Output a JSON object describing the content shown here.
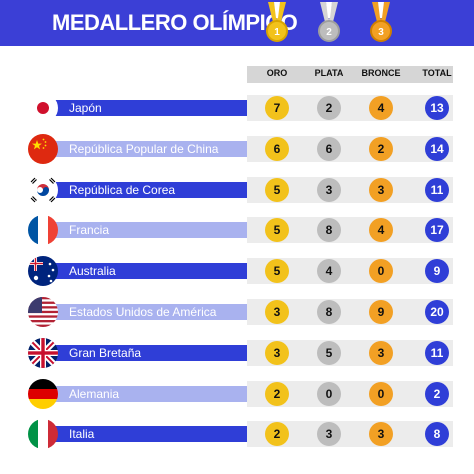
{
  "header": {
    "title": "MEDALLERO OLÍMPICO",
    "medal_colors": {
      "gold": "#f2c21b",
      "silver": "#bdbdbd",
      "bronze": "#f2a024"
    },
    "medal_numbers": [
      "1",
      "2",
      "3"
    ]
  },
  "chart_data": {
    "type": "table",
    "columns": [
      "ORO",
      "PLATA",
      "BRONCE",
      "TOTAL"
    ],
    "rows": [
      {
        "country": "Japón",
        "flag": "japan-flag",
        "oro": "7",
        "plata": "2",
        "bronce": "4",
        "total": "13"
      },
      {
        "country": "República Popular de China",
        "flag": "china-flag",
        "oro": "6",
        "plata": "6",
        "bronce": "2",
        "total": "14"
      },
      {
        "country": "República de Corea",
        "flag": "korea-flag",
        "oro": "5",
        "plata": "3",
        "bronce": "3",
        "total": "11"
      },
      {
        "country": "Francia",
        "flag": "france-flag",
        "oro": "5",
        "plata": "8",
        "bronce": "4",
        "total": "17"
      },
      {
        "country": "Australia",
        "flag": "australia-flag",
        "oro": "5",
        "plata": "4",
        "bronce": "0",
        "total": "9"
      },
      {
        "country": "Estados Unidos de América",
        "flag": "usa-flag",
        "oro": "3",
        "plata": "8",
        "bronce": "9",
        "total": "20"
      },
      {
        "country": "Gran Bretaña",
        "flag": "uk-flag",
        "oro": "3",
        "plata": "5",
        "bronce": "3",
        "total": "11"
      },
      {
        "country": "Alemania",
        "flag": "germany-flag",
        "oro": "2",
        "plata": "0",
        "bronce": "0",
        "total": "2"
      },
      {
        "country": "Italia",
        "flag": "italy-flag",
        "oro": "2",
        "plata": "3",
        "bronce": "3",
        "total": "8"
      }
    ]
  },
  "colors": {
    "primary": "#3b3fd6",
    "bar": "#2f3ed7",
    "bar_light": "#a9b2ef",
    "total": "#2f3ed7"
  }
}
